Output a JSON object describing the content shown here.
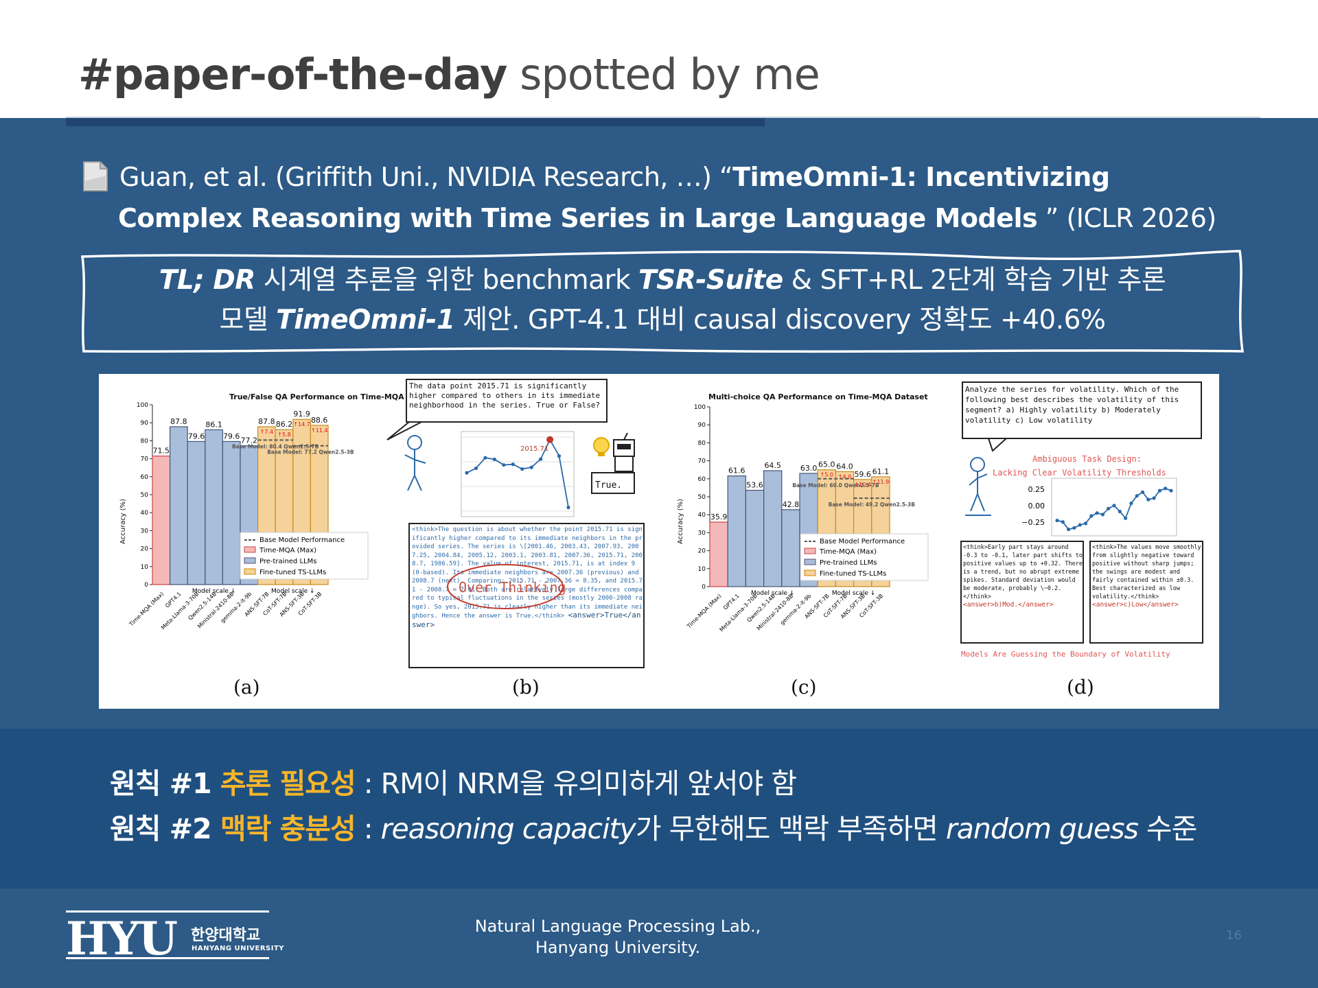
{
  "header": {
    "title_bold": "#paper-of-the-day",
    "title_rest": " spotted by me"
  },
  "citation": {
    "authors": "Guan, et al. (Griffith Uni., NVIDIA Research, …) “",
    "title_part1": "TimeOmni-1: Incentivizing",
    "title_part2": "Complex Reasoning with Time Series in Large Language Models",
    "venue": " ” (ICLR 2026)",
    "icon": "document-icon"
  },
  "tldr": {
    "label": "TL; DR",
    "line1_a": " 시계열 추론을 위한 benchmark ",
    "suite": "TSR-Suite",
    "line1_b": " & SFT+RL 2단계 학습 기반 추론",
    "line2_a": "모델 ",
    "model": "TimeOmni-1",
    "line2_b": " 제안. GPT-4.1 대비 causal discovery 정확도 +40.6%"
  },
  "figure": {
    "captions": [
      "(a)",
      "(b)",
      "(c)",
      "(d)"
    ],
    "panel_a": {
      "title": "True/False QA Performance on Time-MQA Dataset",
      "ylabel": "Accuracy (%)",
      "models": [
        "Time-MQA (Max)",
        "GPT4.1",
        "Meta-Llama-3-70B",
        "Qwen2.5-14B",
        "Ministral-2410-8B",
        "gemma-2-it-9b",
        "ANS-SFT-7B",
        "CoT-SFT-7B",
        "ANS-SFT-3B",
        "CoT-SFT-3B"
      ],
      "xlabel_left": "Model scale ↓",
      "xlabel_right": "Model scale ↓",
      "legend": [
        "Base Model Performance",
        "Time-MQA (Max)",
        "Pre-trained LLMs",
        "Fine-tuned TS-LLMs"
      ],
      "base_labels": [
        "Base Model: 80.4 Qwen2.5-7B",
        "Base Model: 77.2 Qwen2.5-3B"
      ],
      "gains": [
        "↑7.4",
        "↑5.8",
        "↑14.7",
        "↑11.4"
      ]
    },
    "panel_b": {
      "question": "The data point 2015.71 is significantly higher compared to others in its immediate neighborhood in the series. True or False?",
      "highlight_value": "2015.71",
      "bubble": "True.",
      "stamp": "Over Thinking",
      "think": "<think>The question is about whether the point 2015.71 is significantly higher compared to its immediate neighbors in the provided series. The series is \\[2001.46, 2003.43, 2007.93, 2007.25, 2004.84, 2005.12, 2003.1, 2003.81, 2007.36, 2015.71, 2008.7, 1986.59]. The value of interest, 2015.71, is at index 9 (0-based). Its immediate neighbors are 2007.36 (previous) and 2008.7 (next). Comparing: 2015.71 - 2007.36 = 8.35, and 2015.71 - 2008.7 = 7.01. Both are relatively large differences compared to typical fluctuations in the series (mostly 2000-2008 range). So yes, 2015.71 is clearly higher than its immediate neighbors. Hence the answer is True.</think>",
      "answer": "<answer>True</answer>"
    },
    "panel_c": {
      "title": "Multi-choice QA Performance on Time-MQA Dataset",
      "ylabel": "Accuracy (%)",
      "xlabel_left": "Model scale ↓",
      "xlabel_right": "Model scale ↓",
      "legend": [
        "Base Model Performance",
        "Time-MQA (Max)",
        "Pre-trained LLMs",
        "Fine-tuned TS-LLMs"
      ],
      "base_labels": [
        "Base Model: 60.0 Qwen2.5-7B",
        "Base Model: 49.2 Qwen2.5-3B"
      ],
      "gains": [
        "↑5.0",
        "↑4.0",
        "↑10.4",
        "↑11.9"
      ]
    },
    "panel_d": {
      "question": "Analyze the series for volatility. Which of the following best describes the volatility of this segment? a) Highly volatility b) Moderately volatility c) Low volatility",
      "annotation_1": "Ambiguous Task Design:",
      "annotation_2": "Lacking Clear Volatility Thresholds",
      "y_ticks": [
        "0.25",
        "0.00",
        "−0.25"
      ],
      "think_left": "<think>Early part stays around -0.3 to -0.1, later part shifts to positive values up to +0.32. There is a trend, but no abrupt extreme spikes. Standard deviation would be moderate, probably \\~0.2.</think>",
      "answer_left": "<answer>b)Mod.</answer>",
      "think_right": "<think>The values move smoothly from slightly negative toward positive without sharp jumps; the swings are modest and fairly contained within ±0.3. Best characterized as low volatility.</think>",
      "answer_right": "<answer>c)Low</answer>",
      "footer": "Models Are Guessing the Boundary of Volatility"
    }
  },
  "chart_data": [
    {
      "type": "bar",
      "title": "True/False QA Performance on Time-MQA Dataset",
      "ylabel": "Accuracy (%)",
      "ylim": [
        0,
        100
      ],
      "categories": [
        "Time-MQA (Max)",
        "GPT4.1",
        "Meta-Llama-3-70B",
        "Qwen2.5-14B",
        "Ministral-2410-8B",
        "gemma-2-it-9b",
        "ANS-SFT-7B",
        "CoT-SFT-7B",
        "ANS-SFT-3B",
        "CoT-SFT-3B"
      ],
      "values": [
        71.5,
        87.8,
        79.6,
        86.1,
        79.6,
        77.2,
        87.8,
        86.2,
        91.9,
        88.6
      ],
      "groups": [
        "time-mqa",
        "pretrained",
        "pretrained",
        "pretrained",
        "pretrained",
        "pretrained",
        "finetuned",
        "finetuned",
        "finetuned",
        "finetuned"
      ],
      "base_model_lines": [
        80.4,
        77.2
      ],
      "legend": "bottom-right"
    },
    {
      "type": "line",
      "x": [
        0,
        1,
        2,
        3,
        4,
        5,
        6,
        7,
        8,
        9,
        10,
        11
      ],
      "values": [
        2001.46,
        2003.43,
        2007.93,
        2007.25,
        2004.84,
        2005.12,
        2003.1,
        2003.81,
        2007.36,
        2015.71,
        2008.7,
        1986.59
      ]
    },
    {
      "type": "bar",
      "title": "Multi-choice QA Performance on Time-MQA Dataset",
      "ylabel": "Accuracy (%)",
      "ylim": [
        0,
        100
      ],
      "categories": [
        "Time-MQA (Max)",
        "GPT4.1",
        "Meta-Llama-3-70B",
        "Qwen2.5-14B",
        "Ministral-2410-8B",
        "gemma-2-it-9b",
        "ANS-SFT-7B",
        "CoT-SFT-7B",
        "ANS-SFT-3B",
        "CoT-SFT-3B"
      ],
      "values": [
        35.9,
        61.6,
        53.6,
        64.5,
        42.8,
        63.0,
        65.0,
        64.0,
        59.6,
        61.1
      ],
      "groups": [
        "time-mqa",
        "pretrained",
        "pretrained",
        "pretrained",
        "pretrained",
        "pretrained",
        "finetuned",
        "finetuned",
        "finetuned",
        "finetuned"
      ],
      "base_model_lines": [
        60.0,
        49.2
      ],
      "legend": "bottom-right"
    },
    {
      "type": "line",
      "x": [
        0,
        1,
        2,
        3,
        4,
        5,
        6,
        7,
        8,
        9,
        10,
        11,
        12,
        13,
        14,
        15,
        16,
        17,
        18,
        19,
        20
      ],
      "values": [
        -0.18,
        -0.2,
        -0.3,
        -0.28,
        -0.24,
        -0.22,
        -0.12,
        -0.08,
        -0.1,
        -0.02,
        0.02,
        -0.06,
        -0.15,
        0.05,
        0.15,
        0.2,
        0.1,
        0.12,
        0.22,
        0.25,
        0.22
      ],
      "ylim": [
        -0.35,
        0.35
      ]
    }
  ],
  "principles": [
    {
      "label": "원칙 #1 ",
      "keyword": "추론 필요성",
      "text_a": " : RM이 NRM을 유의미하게 앞서야 함",
      "italic": "",
      "text_b": "",
      "italic2": "",
      "text_c": ""
    },
    {
      "label": "원칙 #2 ",
      "keyword": "맥락 충분성",
      "text_a": " : ",
      "italic": "reasoning capacity",
      "text_b": "가 무한해도 맥락 부족하면 ",
      "italic2": "random guess",
      "text_c": " 수준"
    }
  ],
  "footer": {
    "logo": "HYU",
    "logo_kr": "한양대학교",
    "logo_en": "HANYANG UNIVERSITY",
    "lab_line1": "Natural Language Processing Lab.,",
    "lab_line2": "Hanyang University.",
    "page_number": "16"
  },
  "colors": {
    "band": "#2d5a86",
    "principles_band": "#1f4f7f",
    "keyword": "#f6b52b",
    "bar_time_mqa": "#f4b8b8",
    "bar_pretrained": "#a9bedb",
    "bar_finetuned": "#f5d29a"
  }
}
